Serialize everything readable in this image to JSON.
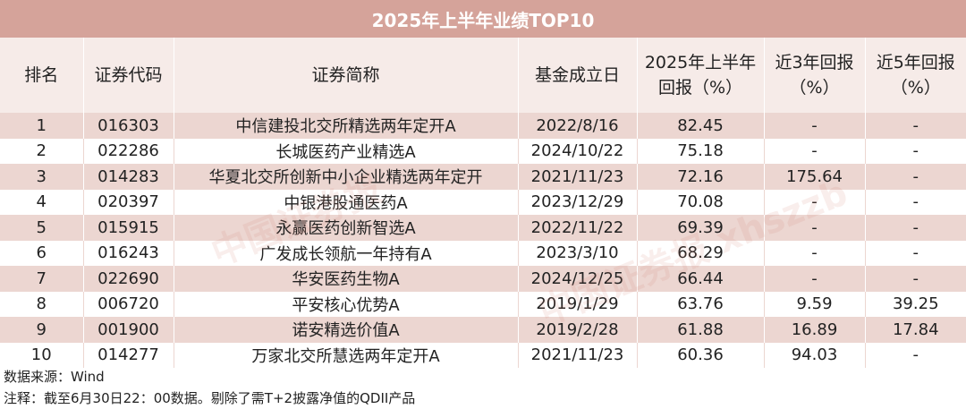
{
  "title": "2025年上半年业绩TOP10",
  "headers": {
    "rank": "排名",
    "code": "证券代码",
    "name": "证券简称",
    "date": "基金成立日",
    "perf_h1": "2025年上半年回报（%）",
    "ret3": "近3年回报（%）",
    "ret5": "近5年回报（%）"
  },
  "rows": [
    {
      "rank": "1",
      "code": "016303",
      "name": "中信建投北交所精选两年定开A",
      "date": "2022/8/16",
      "perf": "82.45",
      "ret3": "-",
      "ret5": "-"
    },
    {
      "rank": "2",
      "code": "022286",
      "name": "长城医药产业精选A",
      "date": "2024/10/22",
      "perf": "75.18",
      "ret3": "-",
      "ret5": "-"
    },
    {
      "rank": "3",
      "code": "014283",
      "name": "华夏北交所创新中小企业精选两年定开",
      "date": "2021/11/23",
      "perf": "72.16",
      "ret3": "175.64",
      "ret5": "-"
    },
    {
      "rank": "4",
      "code": "020397",
      "name": "中银港股通医药A",
      "date": "2023/12/29",
      "perf": "70.08",
      "ret3": "-",
      "ret5": "-"
    },
    {
      "rank": "5",
      "code": "015915",
      "name": "永赢医药创新智选A",
      "date": "2022/11/22",
      "perf": "69.39",
      "ret3": "-",
      "ret5": "-"
    },
    {
      "rank": "6",
      "code": "016243",
      "name": "广发成长领航一年持有A",
      "date": "2023/3/10",
      "perf": "68.29",
      "ret3": "-",
      "ret5": "-"
    },
    {
      "rank": "7",
      "code": "022690",
      "name": "华安医药生物A",
      "date": "2024/12/25",
      "perf": "66.44",
      "ret3": "-",
      "ret5": "-"
    },
    {
      "rank": "8",
      "code": "006720",
      "name": "平安核心优势A",
      "date": "2019/1/29",
      "perf": "63.76",
      "ret3": "9.59",
      "ret5": "39.25"
    },
    {
      "rank": "9",
      "code": "001900",
      "name": "诺安精选价值A",
      "date": "2019/2/28",
      "perf": "61.88",
      "ret3": "16.89",
      "ret5": "17.84"
    },
    {
      "rank": "10",
      "code": "014277",
      "name": "万家北交所慧选两年定开A",
      "date": "2021/11/23",
      "perf": "60.36",
      "ret3": "94.03",
      "ret5": "-"
    }
  ],
  "source": "数据来源：Wind",
  "note": "注释：截至6月30日22：00数据。剔除了需T+2披露净值的QDII产品",
  "watermark": {
    "text1": "中国证券报 xhszzb",
    "text2": "中国证券报"
  },
  "colors": {
    "title_bg": "#d5a39a",
    "header_bg": "#f6ebe8",
    "band": "#ecd6d1"
  }
}
